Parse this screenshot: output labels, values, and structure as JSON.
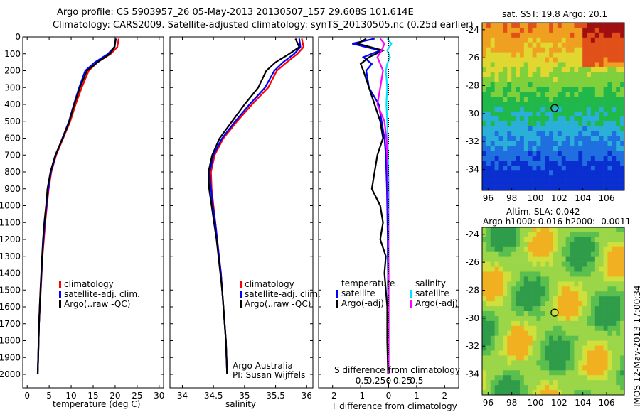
{
  "header": {
    "line1": "Argo profile: CS 5903957_26 05-May-2013 20130507_157 29.608S 101.614E",
    "line2": "Climatology: CARS2009. Satellite-adjusted climatology: synTS_20130505.nc (0.25d earlier)"
  },
  "panels": {
    "temperature": {
      "xlabel": "temperature (deg C)",
      "xticks": [
        "0",
        "5",
        "10",
        "15",
        "20",
        "25",
        "30"
      ],
      "legend": [
        "climatology",
        "satellite-adj. clim.",
        "Argo(..raw -QC)"
      ]
    },
    "salinity": {
      "xlabel": "salinity",
      "xticks": [
        "34",
        "34.5",
        "35",
        "35.5",
        "36"
      ],
      "legend": [
        "climatology",
        "satellite-adj. clim.",
        "Argo(..raw -QC)"
      ],
      "credit1": "Argo Australia",
      "credit2": "PI: Susan Wijffels"
    },
    "difference": {
      "xlabel": "T difference from climatology",
      "top_label": "S difference from climatology",
      "top_ticks": [
        "-0.5",
        "-0.25",
        "0",
        "0.25",
        "0.5"
      ],
      "xticks": [
        "-2",
        "-1",
        "0",
        "1",
        "2"
      ],
      "legend_temp_title": "temperature",
      "legend_sal_title": "salinity",
      "legend_temp": [
        "satellite",
        "Argo(-adj)"
      ],
      "legend_sal": [
        "satellite",
        "Argo(-adj)"
      ]
    },
    "sst_map": {
      "title": "sat. SST: 19.8  Argo: 20.1",
      "xticks": [
        "96",
        "98",
        "100",
        "102",
        "104",
        "106"
      ],
      "yticks": [
        "-24",
        "-26",
        "-28",
        "-30",
        "-32",
        "-34"
      ]
    },
    "sla_map": {
      "title1": "Altim. SLA: 0.042",
      "title2": "Argo h1000: 0.016  h2000: -0.0011",
      "xticks": [
        "96",
        "98",
        "100",
        "102",
        "104",
        "106"
      ],
      "yticks": [
        "-24",
        "-26",
        "-28",
        "-30",
        "-32",
        "-34"
      ]
    }
  },
  "yaxis_ticks": [
    "0",
    "100",
    "200",
    "300",
    "400",
    "500",
    "600",
    "700",
    "800",
    "900",
    "1000",
    "1100",
    "1200",
    "1300",
    "1400",
    "1500",
    "1600",
    "1700",
    "1800",
    "1900",
    "2000"
  ],
  "timestamp": "IMOS 12-May-2013 17:00:34",
  "colors": {
    "climatology": "#ff0000",
    "satellite": "#0000ff",
    "argo": "#000000",
    "sat_sal": "#00e5ff",
    "argo_sal": "#ff00ff"
  },
  "chart_data": [
    {
      "type": "line",
      "name": "temperature profile",
      "xlabel": "temperature (deg C)",
      "ylabel": "",
      "xlim": [
        -1,
        31
      ],
      "ylim": [
        2080,
        0
      ],
      "series": [
        {
          "name": "climatology",
          "color": "#ff0000",
          "x": [
            20.8,
            20.5,
            19.0,
            16.0,
            14.0,
            12.4,
            11.0,
            9.8,
            8.2,
            6.6,
            5.5,
            4.9,
            4.5,
            4.1,
            3.8,
            3.5,
            3.3,
            3.1,
            2.9,
            2.7,
            2.6,
            2.5,
            2.4
          ],
          "y": [
            10,
            60,
            100,
            150,
            200,
            300,
            400,
            500,
            600,
            700,
            800,
            900,
            1000,
            1100,
            1200,
            1300,
            1400,
            1500,
            1600,
            1700,
            1800,
            1900,
            2000
          ]
        },
        {
          "name": "satellite-adj. clim.",
          "color": "#0000ff",
          "x": [
            20.2,
            19.8,
            18.4,
            15.4,
            13.2,
            11.8,
            10.6,
            9.5,
            8.0,
            6.5,
            5.4,
            4.8,
            4.4,
            4.0,
            3.7,
            3.45,
            3.25,
            3.05,
            2.85,
            2.7,
            2.6,
            2.5,
            2.4
          ],
          "y": [
            10,
            60,
            100,
            150,
            200,
            300,
            400,
            500,
            600,
            700,
            800,
            900,
            1000,
            1100,
            1200,
            1300,
            1400,
            1500,
            1600,
            1700,
            1800,
            1900,
            2000
          ]
        },
        {
          "name": "Argo(..raw -QC)",
          "color": "#000000",
          "x": [
            20.1,
            19.9,
            18.8,
            16.0,
            13.6,
            12.0,
            10.7,
            9.6,
            8.1,
            6.4,
            5.3,
            4.6,
            4.3,
            3.9,
            3.6,
            3.4,
            3.2,
            3.0,
            2.85,
            2.7,
            2.6,
            2.5,
            2.4
          ],
          "y": [
            10,
            60,
            100,
            150,
            200,
            300,
            400,
            500,
            600,
            700,
            800,
            900,
            1000,
            1100,
            1200,
            1300,
            1400,
            1500,
            1600,
            1700,
            1800,
            1900,
            2000
          ]
        }
      ]
    },
    {
      "type": "line",
      "name": "salinity profile",
      "xlabel": "salinity",
      "ylabel": "",
      "xlim": [
        33.8,
        36.1
      ],
      "ylim": [
        2080,
        0
      ],
      "series": [
        {
          "name": "climatology",
          "color": "#ff0000",
          "x": [
            35.92,
            35.95,
            35.85,
            35.68,
            35.52,
            35.38,
            35.12,
            34.88,
            34.66,
            34.52,
            34.46,
            34.47,
            34.5,
            34.53,
            34.56,
            34.59,
            34.62,
            34.64,
            34.66,
            34.68,
            34.7,
            34.71,
            34.72
          ],
          "y": [
            10,
            60,
            100,
            150,
            200,
            300,
            400,
            500,
            600,
            700,
            800,
            900,
            1000,
            1100,
            1200,
            1300,
            1400,
            1500,
            1600,
            1700,
            1800,
            1900,
            2000
          ]
        },
        {
          "name": "satellite-adj. clim.",
          "color": "#0000ff",
          "x": [
            35.88,
            35.9,
            35.8,
            35.62,
            35.48,
            35.33,
            35.08,
            34.85,
            34.64,
            34.5,
            34.44,
            34.46,
            34.49,
            34.53,
            34.56,
            34.59,
            34.62,
            34.64,
            34.66,
            34.68,
            34.7,
            34.71,
            34.72
          ],
          "y": [
            10,
            60,
            100,
            150,
            200,
            300,
            400,
            500,
            600,
            700,
            800,
            900,
            1000,
            1100,
            1200,
            1300,
            1400,
            1500,
            1600,
            1700,
            1800,
            1900,
            2000
          ]
        },
        {
          "name": "Argo(..raw -QC)",
          "color": "#000000",
          "x": [
            35.82,
            35.88,
            35.72,
            35.5,
            35.35,
            35.22,
            35.0,
            34.8,
            34.6,
            34.48,
            34.42,
            34.43,
            34.47,
            34.51,
            34.55,
            34.58,
            34.61,
            34.64,
            34.66,
            34.68,
            34.7,
            34.71,
            34.72
          ],
          "y": [
            10,
            60,
            100,
            150,
            200,
            300,
            400,
            500,
            600,
            700,
            800,
            900,
            1000,
            1100,
            1200,
            1300,
            1400,
            1500,
            1600,
            1700,
            1800,
            1900,
            2000
          ]
        }
      ]
    },
    {
      "type": "line",
      "name": "difference profile",
      "xlabel": "T difference from climatology",
      "ylabel": "",
      "xlim": [
        -2.5,
        2.5
      ],
      "ylim": [
        2080,
        0
      ],
      "series": [
        {
          "name": "satellite (T)",
          "color": "#0000ff",
          "x": [
            -0.5,
            -1.3,
            -0.3,
            -0.9,
            -0.6,
            -0.8,
            -0.7,
            -0.35,
            -0.25,
            -0.15,
            -0.1,
            -0.08,
            -0.06,
            -0.05,
            -0.04,
            -0.03,
            -0.03,
            -0.02,
            -0.02,
            -0.01,
            -0.01,
            0.0
          ],
          "y": [
            10,
            40,
            80,
            120,
            160,
            200,
            300,
            400,
            500,
            600,
            700,
            800,
            900,
            1000,
            1100,
            1200,
            1300,
            1400,
            1500,
            1600,
            1800,
            2000
          ]
        },
        {
          "name": "Argo(-adj) (T)",
          "color": "#000000",
          "x": [
            -0.8,
            -1.1,
            -0.2,
            -0.7,
            -1.0,
            -0.9,
            -0.7,
            -0.5,
            -0.3,
            -0.2,
            -0.4,
            -0.5,
            -0.6,
            -0.3,
            -0.2,
            -0.3,
            -0.1,
            -0.15,
            -0.1,
            -0.05,
            -0.05,
            -0.02
          ],
          "y": [
            10,
            40,
            80,
            120,
            160,
            200,
            300,
            400,
            500,
            600,
            700,
            800,
            900,
            1000,
            1100,
            1200,
            1300,
            1400,
            1500,
            1600,
            1800,
            2000
          ]
        },
        {
          "name": "satellite (S)",
          "color": "#00e5ff",
          "x": [
            -0.05,
            0.1,
            -0.05,
            0.05,
            -0.05,
            -0.1,
            -0.05,
            -0.08,
            -0.05,
            -0.03,
            -0.02,
            -0.01,
            0.0,
            0.0,
            0.0,
            0.0,
            0.0,
            0.0,
            0.0,
            0.0,
            0.0,
            0.0
          ],
          "y": [
            10,
            40,
            80,
            120,
            160,
            200,
            300,
            400,
            500,
            600,
            700,
            800,
            900,
            1000,
            1100,
            1200,
            1300,
            1400,
            1500,
            1600,
            1800,
            2000
          ]
        },
        {
          "name": "Argo(-adj) (S)",
          "color": "#ff00ff",
          "x": [
            -0.3,
            -0.15,
            -0.25,
            -0.4,
            -0.3,
            -0.2,
            -0.3,
            -0.4,
            -0.15,
            -0.08,
            -0.05,
            -0.03,
            -0.02,
            -0.02,
            -0.01,
            -0.01,
            -0.01,
            0.0,
            0.0,
            0.0,
            0.0,
            0.0
          ],
          "y": [
            10,
            40,
            80,
            120,
            160,
            200,
            300,
            400,
            500,
            600,
            700,
            800,
            900,
            1000,
            1100,
            1200,
            1300,
            1400,
            1500,
            1600,
            1800,
            2000
          ]
        }
      ]
    },
    {
      "type": "heatmap",
      "name": "sat. SST map",
      "title": "sat. SST: 19.8  Argo: 20.1",
      "xlim": [
        95.5,
        107.5
      ],
      "ylim": [
        -35.5,
        -23.5
      ],
      "marker": {
        "lon": 101.614,
        "lat": -29.608
      }
    },
    {
      "type": "heatmap",
      "name": "Altim. SLA map",
      "title": "Altim. SLA: 0.042",
      "xlim": [
        95.5,
        107.5
      ],
      "ylim": [
        -35.5,
        -23.5
      ],
      "marker": {
        "lon": 101.614,
        "lat": -29.608
      }
    }
  ]
}
